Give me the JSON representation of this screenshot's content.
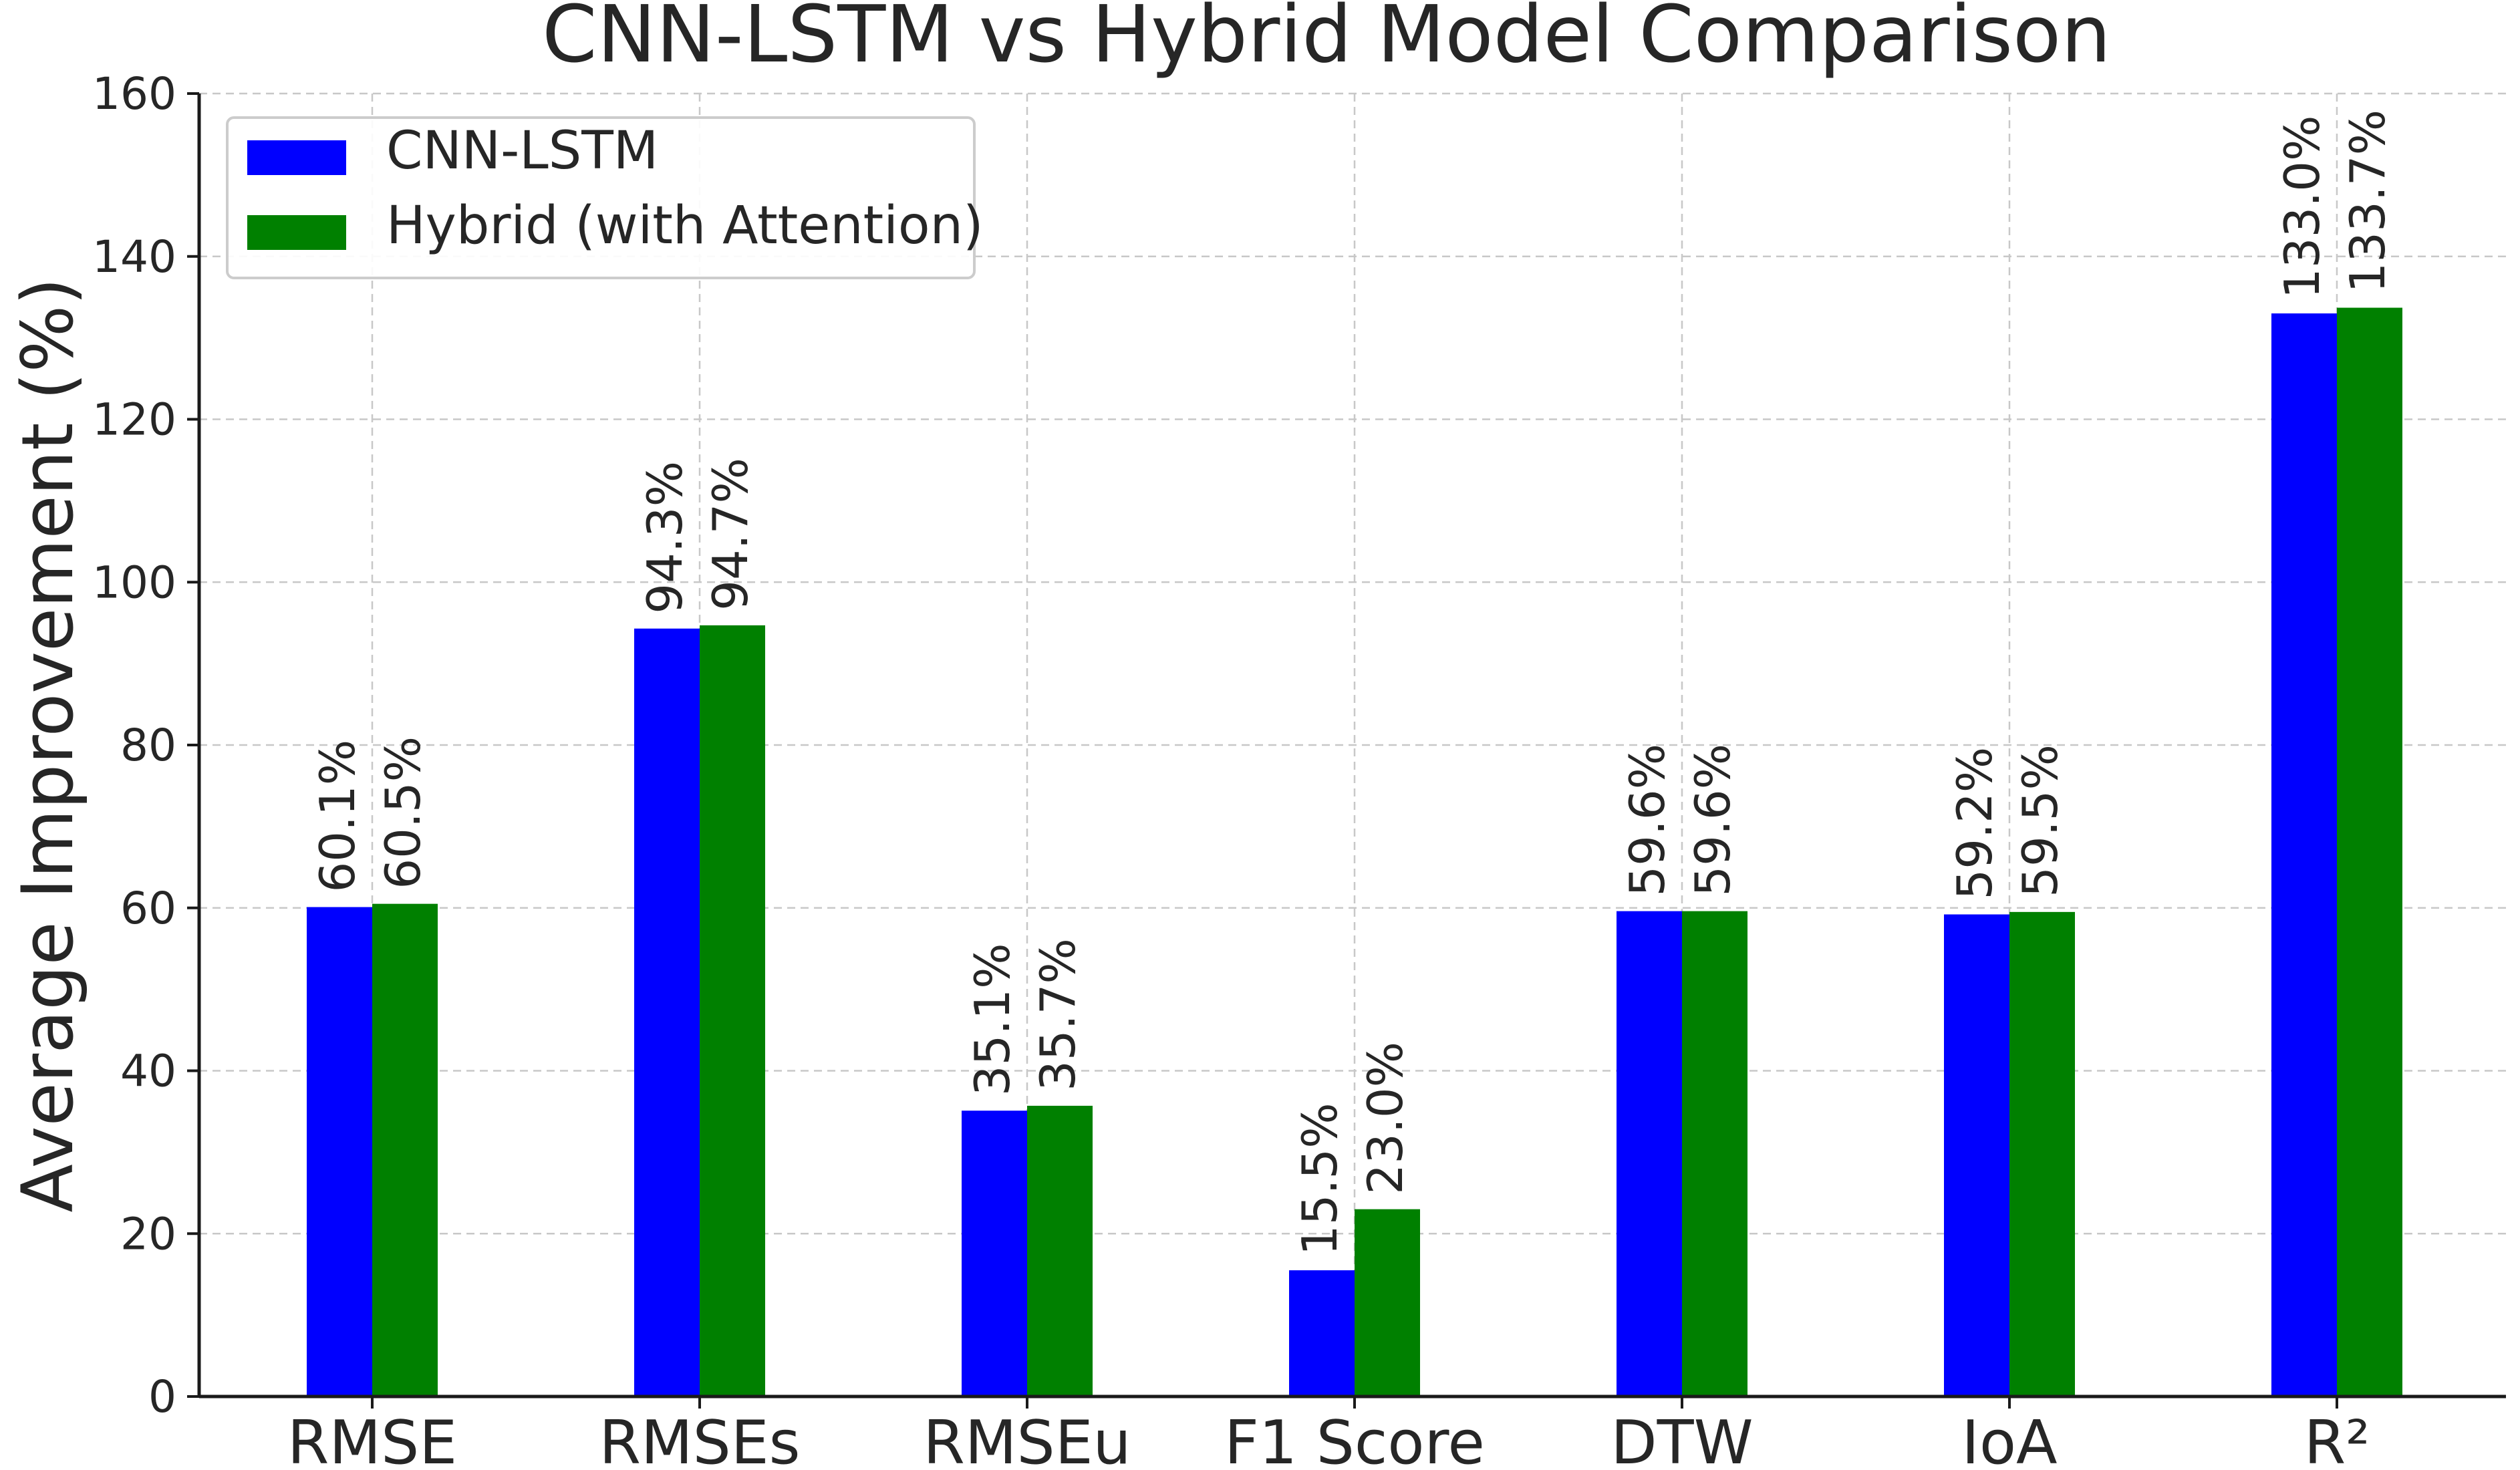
{
  "chart_data": {
    "type": "bar",
    "title": "CNN-LSTM vs Hybrid Model Comparison",
    "xlabel": "",
    "ylabel": "Average Improvement (%)",
    "ylim": [
      0,
      160
    ],
    "yticks": [
      "0",
      "20",
      "40",
      "60",
      "80",
      "100",
      "120",
      "140",
      "160"
    ],
    "grid": true,
    "legend_position": "top-left",
    "categories": [
      "RMSE",
      "RMSEs",
      "RMSEu",
      "F1 Score",
      "DTW",
      "IoA",
      "R²"
    ],
    "series": [
      {
        "name": "CNN-LSTM",
        "color": "#0000ff",
        "values": [
          60.1,
          94.3,
          35.1,
          15.5,
          59.6,
          59.2,
          133.0
        ],
        "labels": [
          "60.1%",
          "94.3%",
          "35.1%",
          "15.5%",
          "59.6%",
          "59.2%",
          "133.0%"
        ]
      },
      {
        "name": "Hybrid (with Attention)",
        "color": "#008000",
        "values": [
          60.5,
          94.7,
          35.7,
          23.0,
          59.6,
          59.5,
          133.7
        ],
        "labels": [
          "60.5%",
          "94.7%",
          "35.7%",
          "23.0%",
          "59.6%",
          "59.5%",
          "133.7%"
        ]
      }
    ]
  }
}
